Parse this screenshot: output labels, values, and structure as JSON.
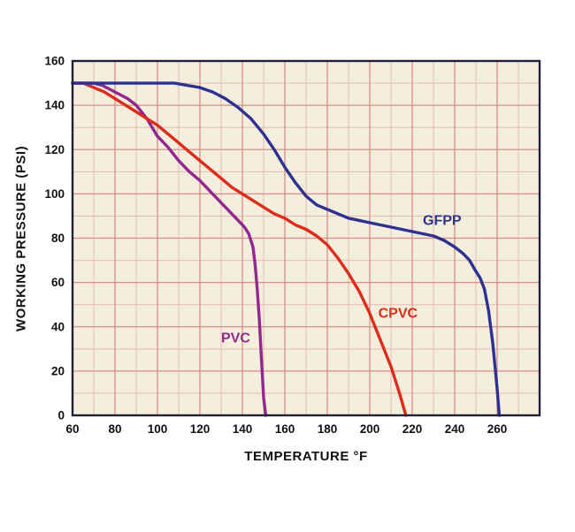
{
  "chart_data": {
    "type": "line",
    "title": "",
    "xlabel": "TEMPERATURE °F",
    "ylabel": "WORKING PRESSURE (PSI)",
    "xlim": [
      60,
      280
    ],
    "ylim": [
      0,
      160
    ],
    "x_ticks": [
      60,
      80,
      100,
      120,
      140,
      160,
      180,
      200,
      220,
      240,
      260
    ],
    "y_ticks": [
      0,
      20,
      40,
      60,
      80,
      100,
      120,
      140,
      160
    ],
    "grid": {
      "on": true,
      "minor_step": 10,
      "major_step": 20,
      "major_color": "#d98f86",
      "minor_color": "#e7bab1",
      "background": "#f4eedc",
      "border_color": "#20223a"
    },
    "legend_position": "inline-labels",
    "series": [
      {
        "name": "PVC",
        "color": "#91278f",
        "label_pos": [
          130,
          33
        ],
        "points": [
          [
            60,
            150
          ],
          [
            65,
            150
          ],
          [
            70,
            150
          ],
          [
            74,
            149
          ],
          [
            78,
            147
          ],
          [
            82,
            145
          ],
          [
            86,
            143
          ],
          [
            90,
            140
          ],
          [
            95,
            134
          ],
          [
            100,
            126
          ],
          [
            105,
            121
          ],
          [
            110,
            115
          ],
          [
            115,
            110
          ],
          [
            120,
            106
          ],
          [
            125,
            101
          ],
          [
            130,
            96
          ],
          [
            135,
            91
          ],
          [
            138,
            88
          ],
          [
            141,
            85
          ],
          [
            143,
            82
          ],
          [
            145,
            76
          ],
          [
            146,
            68
          ],
          [
            147,
            57
          ],
          [
            148,
            43
          ],
          [
            149,
            25
          ],
          [
            150,
            8
          ],
          [
            151,
            0
          ]
        ]
      },
      {
        "name": "CPVC",
        "color": "#dd2b1c",
        "label_pos": [
          204,
          44
        ],
        "points": [
          [
            60,
            150
          ],
          [
            65,
            150
          ],
          [
            70,
            148
          ],
          [
            75,
            146
          ],
          [
            80,
            143
          ],
          [
            85,
            140
          ],
          [
            90,
            137
          ],
          [
            95,
            134
          ],
          [
            100,
            131
          ],
          [
            105,
            127
          ],
          [
            110,
            123
          ],
          [
            115,
            119
          ],
          [
            120,
            115
          ],
          [
            125,
            111
          ],
          [
            130,
            107
          ],
          [
            135,
            103
          ],
          [
            140,
            100
          ],
          [
            145,
            97
          ],
          [
            150,
            94
          ],
          [
            155,
            91
          ],
          [
            160,
            89
          ],
          [
            165,
            86
          ],
          [
            170,
            84
          ],
          [
            175,
            81
          ],
          [
            180,
            77
          ],
          [
            185,
            71
          ],
          [
            190,
            64
          ],
          [
            195,
            56
          ],
          [
            200,
            46
          ],
          [
            205,
            34
          ],
          [
            210,
            22
          ],
          [
            214,
            10
          ],
          [
            217,
            0
          ]
        ]
      },
      {
        "name": "GFPP",
        "color": "#2e3192",
        "label_pos": [
          225,
          86
        ],
        "points": [
          [
            60,
            150
          ],
          [
            70,
            150
          ],
          [
            80,
            150
          ],
          [
            90,
            150
          ],
          [
            100,
            150
          ],
          [
            108,
            150
          ],
          [
            114,
            149
          ],
          [
            120,
            148
          ],
          [
            126,
            146
          ],
          [
            132,
            143
          ],
          [
            138,
            139
          ],
          [
            144,
            134
          ],
          [
            150,
            127
          ],
          [
            155,
            120
          ],
          [
            160,
            112
          ],
          [
            165,
            105
          ],
          [
            170,
            99
          ],
          [
            175,
            95
          ],
          [
            180,
            93
          ],
          [
            185,
            91
          ],
          [
            190,
            89
          ],
          [
            195,
            88
          ],
          [
            200,
            87
          ],
          [
            205,
            86
          ],
          [
            210,
            85
          ],
          [
            215,
            84
          ],
          [
            220,
            83
          ],
          [
            225,
            82
          ],
          [
            230,
            81
          ],
          [
            235,
            79
          ],
          [
            240,
            76
          ],
          [
            244,
            73
          ],
          [
            247,
            70
          ],
          [
            250,
            65
          ],
          [
            252,
            62
          ],
          [
            254,
            57
          ],
          [
            256,
            47
          ],
          [
            258,
            32
          ],
          [
            259,
            22
          ],
          [
            260,
            12
          ],
          [
            261,
            0
          ]
        ]
      }
    ]
  }
}
